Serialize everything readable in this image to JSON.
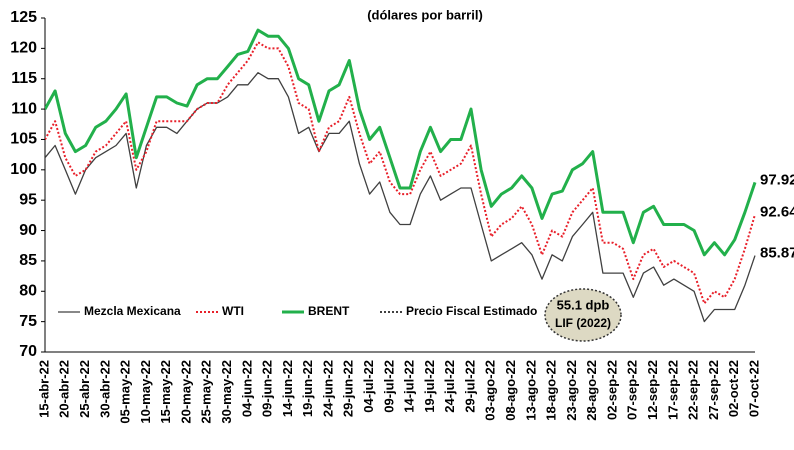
{
  "chart_data": {
    "type": "line",
    "subtitle": "(dólares por barril)",
    "categories": [
      "15-abr-22",
      null,
      "20-abr-22",
      null,
      "25-abr-22",
      null,
      "30-abr-22",
      null,
      "05-may-22",
      null,
      "10-may-22",
      null,
      "15-may-22",
      null,
      "20-may-22",
      null,
      "25-may-22",
      null,
      "30-may-22",
      null,
      "04-jun-22",
      null,
      "09-jun-22",
      null,
      "14-jun-22",
      null,
      "19-jun-22",
      null,
      "24-jun-22",
      null,
      "29-jun-22",
      null,
      "04-jul-22",
      null,
      "09-jul-22",
      null,
      "14-jul-22",
      null,
      "19-jul-22",
      null,
      "24-jul-22",
      null,
      "29-jul-22",
      null,
      "03-ago-22",
      null,
      "08-ago-22",
      null,
      "13-ago-22",
      null,
      "18-ago-22",
      null,
      "23-ago-22",
      null,
      "28-ago-22",
      null,
      "02-sep-22",
      null,
      "07-sep-22",
      null,
      "12-sep-22",
      null,
      "17-sep-22",
      null,
      "22-sep-22",
      null,
      "27-sep-22",
      null,
      "02-oct-22",
      null,
      "07-oct-22"
    ],
    "series": [
      {
        "name": "Mezcla Mexicana",
        "color": "#404040",
        "style": "solid",
        "width": 1.3,
        "values": [
          102,
          104,
          100,
          96,
          100,
          102,
          103,
          104,
          106,
          97,
          104,
          107,
          107,
          106,
          108,
          110,
          111,
          111,
          112,
          114,
          114,
          116,
          115,
          115,
          112,
          106,
          107,
          103,
          106,
          106,
          108,
          101,
          96,
          98,
          93,
          91,
          91,
          96,
          99,
          95,
          96,
          97,
          97,
          91,
          85,
          86,
          87,
          88,
          86,
          82,
          86,
          85,
          89,
          91,
          93,
          83,
          83,
          83,
          79,
          83,
          84,
          81,
          82,
          81,
          80,
          75,
          77,
          77,
          77,
          81,
          85.87
        ]
      },
      {
        "name": "WTI",
        "color": "#e8202a",
        "style": "dotted",
        "width": 2,
        "values": [
          105,
          108,
          102,
          99,
          100,
          103,
          104,
          106,
          108,
          100,
          103,
          108,
          108,
          108,
          108,
          110,
          111,
          111,
          114,
          116,
          118,
          121,
          120,
          120,
          117,
          111,
          110,
          103,
          107,
          108,
          112,
          106,
          101,
          103,
          98,
          96,
          96,
          100,
          103,
          99,
          100,
          101,
          104,
          96,
          89,
          91,
          92,
          94,
          91,
          86,
          90,
          89,
          93,
          95,
          97,
          88,
          88,
          87,
          82,
          86,
          87,
          84,
          85,
          84,
          83,
          78,
          80,
          79,
          82,
          87,
          92.64
        ]
      },
      {
        "name": "BRENT",
        "color": "#22b04b",
        "style": "solid",
        "width": 3,
        "values": [
          110,
          113,
          106,
          103,
          104,
          107,
          108,
          110,
          112.5,
          102,
          107,
          112,
          112,
          111,
          110.5,
          114,
          115,
          115,
          117,
          119,
          119.5,
          123,
          122,
          122,
          120,
          115,
          114,
          108,
          113,
          114,
          118,
          110,
          105,
          107,
          102,
          97,
          97,
          103,
          107,
          103,
          105,
          105,
          110,
          100,
          94,
          96,
          97,
          99,
          97,
          92,
          96,
          96.5,
          100,
          101,
          103,
          93,
          93,
          93,
          88,
          93,
          94,
          91,
          91,
          91,
          90,
          86,
          88,
          86,
          88.5,
          93,
          97.92
        ]
      },
      {
        "name": "Precio Fiscal Estimado",
        "color": "#000000",
        "style": "dotted",
        "width": 1.5,
        "value": 55.1
      }
    ],
    "annotation": {
      "line1": "55.1 dpb",
      "line2": "LIF (2022)"
    },
    "ylim": [
      70,
      125
    ],
    "yticks": [
      70,
      75,
      80,
      85,
      90,
      95,
      100,
      105,
      110,
      115,
      120,
      125
    ],
    "legend": "lower left"
  }
}
